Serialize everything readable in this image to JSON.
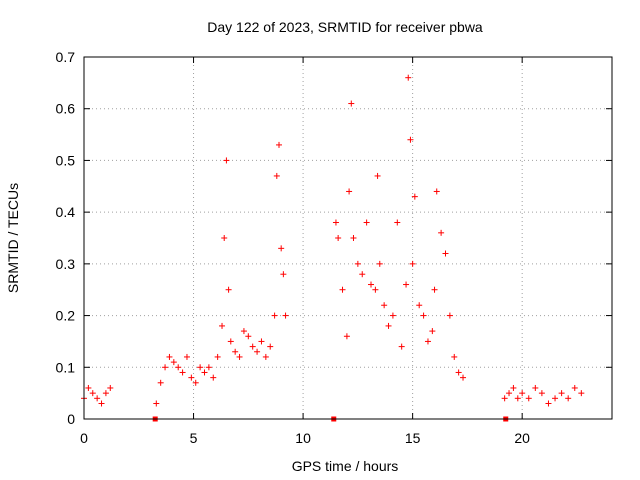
{
  "chart_data": {
    "type": "scatter",
    "title": "Day 122 of 2023, SRMTID for receiver pbwa",
    "xlabel": "GPS time / hours",
    "ylabel": "SRMTID / TECUs",
    "xlim": [
      0,
      24.1
    ],
    "ylim": [
      0,
      0.7
    ],
    "xticks": [
      0,
      5,
      10,
      15,
      20
    ],
    "xtick_labels": [
      "0",
      "5",
      "10",
      "15",
      "20"
    ],
    "yticks": [
      0,
      0.1,
      0.2,
      0.3,
      0.4,
      0.5,
      0.6,
      0.7
    ],
    "ytick_labels": [
      "0",
      "0.1",
      "0.2",
      "0.3",
      "0.4",
      "0.5",
      "0.6",
      "0.7"
    ],
    "grid": true,
    "marker": "+",
    "color": "#ff0000",
    "series": [
      {
        "name": "SRMTID",
        "x": [
          0.0,
          0.2,
          0.4,
          0.6,
          0.8,
          1.0,
          1.2,
          3.3,
          3.5,
          3.7,
          3.9,
          4.1,
          4.3,
          4.5,
          4.7,
          4.9,
          5.1,
          5.3,
          5.5,
          5.7,
          5.9,
          6.1,
          6.3,
          6.4,
          6.5,
          6.6,
          6.7,
          6.9,
          7.1,
          7.3,
          7.5,
          7.7,
          7.9,
          8.1,
          8.3,
          8.5,
          8.7,
          8.8,
          8.9,
          9.0,
          9.1,
          9.2,
          11.5,
          11.6,
          11.8,
          12.0,
          12.1,
          12.2,
          12.3,
          12.5,
          12.7,
          12.9,
          13.1,
          13.3,
          13.4,
          13.5,
          13.7,
          13.9,
          14.1,
          14.3,
          14.5,
          14.7,
          14.8,
          14.9,
          15.0,
          15.1,
          15.3,
          15.5,
          15.7,
          15.9,
          16.0,
          16.1,
          16.3,
          16.5,
          16.7,
          16.9,
          17.1,
          17.3,
          19.2,
          19.4,
          19.6,
          19.8,
          20.0,
          20.3,
          20.6,
          20.9,
          21.2,
          21.5,
          21.8,
          22.1,
          22.4,
          22.7
        ],
        "y": [
          0.04,
          0.06,
          0.05,
          0.04,
          0.03,
          0.05,
          0.06,
          0.03,
          0.07,
          0.1,
          0.12,
          0.11,
          0.1,
          0.09,
          0.12,
          0.08,
          0.07,
          0.1,
          0.09,
          0.1,
          0.08,
          0.12,
          0.18,
          0.35,
          0.5,
          0.25,
          0.15,
          0.13,
          0.12,
          0.17,
          0.16,
          0.14,
          0.13,
          0.15,
          0.12,
          0.14,
          0.2,
          0.47,
          0.53,
          0.33,
          0.28,
          0.2,
          0.38,
          0.35,
          0.25,
          0.16,
          0.44,
          0.61,
          0.35,
          0.3,
          0.28,
          0.38,
          0.26,
          0.25,
          0.47,
          0.3,
          0.22,
          0.18,
          0.2,
          0.38,
          0.14,
          0.26,
          0.66,
          0.54,
          0.3,
          0.43,
          0.22,
          0.2,
          0.15,
          0.17,
          0.25,
          0.44,
          0.36,
          0.32,
          0.2,
          0.12,
          0.09,
          0.08,
          0.04,
          0.05,
          0.06,
          0.04,
          0.05,
          0.04,
          0.06,
          0.05,
          0.03,
          0.04,
          0.05,
          0.04,
          0.06,
          0.05
        ]
      }
    ],
    "data_gaps": [
      3.25,
      11.4,
      19.25
    ]
  }
}
